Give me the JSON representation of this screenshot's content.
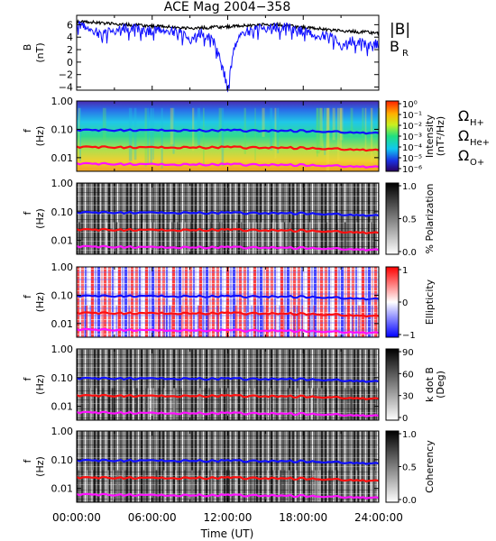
{
  "figure": {
    "title": "ACE Mag 2004−358"
  },
  "chart_data": {
    "type": "line",
    "title": "ACE Mag 2004−358",
    "xlabel": "Time (UT)",
    "x_ticks": [
      "00:00:00",
      "06:00:00",
      "12:00:00",
      "18:00:00",
      "24:00:00"
    ],
    "x_range_hours": [
      0,
      24
    ],
    "panels": [
      {
        "id": "b-field",
        "kind": "timeseries",
        "ylabel_top": "B",
        "ylabel_unit": "(nT)",
        "ylim": [
          -4.5,
          7.5
        ],
        "yticks": [
          "6",
          "4",
          "2",
          "0",
          "−2",
          "−4"
        ],
        "ytick_values": [
          6,
          4,
          2,
          0,
          -2,
          -4
        ],
        "legend": [
          {
            "label": "|B|",
            "color": "#000000"
          },
          {
            "label": "B",
            "sub": "R",
            "color": "#1010ff"
          }
        ],
        "series": [
          {
            "name": "|B|",
            "color": "#000000",
            "x": [
              0,
              1,
              2,
              3,
              4,
              5,
              6,
              7,
              8,
              9,
              10,
              11,
              12,
              13,
              14,
              15,
              16,
              17,
              18,
              19,
              20,
              21,
              22,
              23,
              24
            ],
            "values": [
              6.5,
              6.4,
              6.3,
              6.1,
              6.0,
              5.9,
              5.8,
              5.7,
              5.5,
              5.4,
              5.5,
              5.6,
              5.7,
              5.8,
              5.9,
              6.0,
              6.0,
              5.8,
              5.6,
              5.4,
              5.2,
              5.0,
              4.9,
              4.8,
              4.7
            ]
          },
          {
            "name": "BR",
            "color": "#1010ff",
            "x": [
              0,
              1,
              2,
              3,
              4,
              5,
              6,
              7,
              8,
              9,
              10,
              11,
              11.5,
              12,
              12.5,
              13,
              14,
              15,
              16,
              17,
              18,
              19,
              20,
              21,
              22,
              23,
              24
            ],
            "values": [
              6.0,
              5.5,
              4.5,
              5.0,
              5.5,
              5.3,
              5.0,
              5.2,
              5.0,
              3.5,
              4.8,
              3.0,
              0.0,
              -4.2,
              2.0,
              4.8,
              5.2,
              5.4,
              5.6,
              5.5,
              5.0,
              4.2,
              4.5,
              2.5,
              3.5,
              2.8,
              3.0
            ]
          }
        ]
      },
      {
        "id": "intensity",
        "kind": "spectrogram",
        "ylabel_top": "f",
        "ylabel_unit": "(Hz)",
        "yticks": [
          "1.00",
          "0.10",
          "0.01"
        ],
        "colorbar": {
          "label": "Intensity",
          "unit": "(nT²/Hz)",
          "colormap": "rainbow",
          "ticks": [
            "10⁰",
            "10⁻¹",
            "10⁻²",
            "10⁻³",
            "10⁻⁴",
            "10⁻⁵",
            "10⁻⁶"
          ]
        },
        "legend": [
          {
            "label": "Ω",
            "sub": "H+",
            "color": "#1010ff"
          },
          {
            "label": "Ω",
            "sub": "He+",
            "color": "#ff1010"
          },
          {
            "label": "Ω",
            "sub": "O+",
            "color": "#ff10ff"
          }
        ]
      },
      {
        "id": "polarization",
        "kind": "spectrogram",
        "ylabel_top": "f",
        "ylabel_unit": "(Hz)",
        "yticks": [
          "1.00",
          "0.10",
          "0.01"
        ],
        "colorbar": {
          "label": "% Polarization",
          "unit": "",
          "colormap": "gray",
          "ticks": [
            "1.0",
            "0.5",
            "0.0"
          ]
        }
      },
      {
        "id": "ellipticity",
        "kind": "spectrogram",
        "ylabel_top": "f",
        "ylabel_unit": "(Hz)",
        "yticks": [
          "1.00",
          "0.10",
          "0.01"
        ],
        "colorbar": {
          "label": "Ellipticity",
          "unit": "",
          "colormap": "bwr",
          "ticks": [
            "1",
            "0",
            "−1"
          ]
        }
      },
      {
        "id": "k-dot-b",
        "kind": "spectrogram",
        "ylabel_top": "f",
        "ylabel_unit": "(Hz)",
        "yticks": [
          "1.00",
          "0.10",
          "0.01"
        ],
        "colorbar": {
          "label": "k dot B",
          "unit": "(Deg)",
          "colormap": "gray",
          "ticks": [
            "90",
            "60",
            "30",
            "0"
          ]
        }
      },
      {
        "id": "coherency",
        "kind": "spectrogram",
        "ylabel_top": "f",
        "ylabel_unit": "(Hz)",
        "yticks": [
          "1.00",
          "0.10",
          "0.01"
        ],
        "colorbar": {
          "label": "Coherency",
          "unit": "",
          "colormap": "gray",
          "ticks": [
            "1.0",
            "0.5",
            "0.0"
          ]
        }
      }
    ],
    "gyrofrequency_lines": [
      {
        "name": "ΩH+",
        "color": "#1010ff",
        "x": [
          0,
          6,
          12,
          18,
          24
        ],
        "values": [
          0.095,
          0.093,
          0.09,
          0.088,
          0.072
        ]
      },
      {
        "name": "ΩHe+",
        "color": "#ff1010",
        "x": [
          0,
          6,
          12,
          18,
          24
        ],
        "values": [
          0.024,
          0.023,
          0.023,
          0.022,
          0.018
        ]
      },
      {
        "name": "ΩO+",
        "color": "#ff10ff",
        "x": [
          0,
          6,
          12,
          18,
          24
        ],
        "values": [
          0.0062,
          0.0058,
          0.0057,
          0.0055,
          0.0046
        ]
      }
    ]
  }
}
